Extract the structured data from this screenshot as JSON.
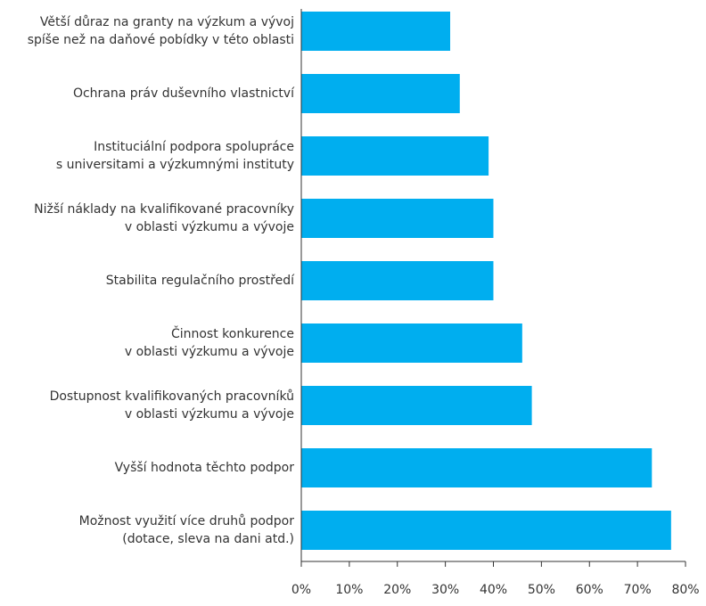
{
  "chart_data": {
    "type": "hbar",
    "categories": [
      [
        "Větší důraz na granty na výzkum a vývoj",
        "spíše než na daňové pobídky v této oblasti"
      ],
      [
        "Ochrana práv duševního vlastnictví"
      ],
      [
        "Instituciální podpora spolupráce",
        "s universitami a výzkumnými instituty"
      ],
      [
        "Nižší náklady na kvalifikované pracovníky",
        "v oblasti výzkumu a vývoje"
      ],
      [
        "Stabilita regulačního prostředí"
      ],
      [
        "Činnost konkurence",
        "v oblasti výzkumu a vývoje"
      ],
      [
        "Dostupnost kvalifikovaných pracovníků",
        "v oblasti výzkumu a vývoje"
      ],
      [
        "Vyšší hodnota těchto podpor"
      ],
      [
        "Možnost využití více druhů podpor",
        "(dotace, sleva na dani atd.)"
      ]
    ],
    "values": [
      31,
      33,
      39,
      40,
      40,
      46,
      48,
      73,
      77
    ],
    "color": "#00aeef",
    "xlim": [
      0,
      80
    ],
    "xticks": [
      {
        "value": 0,
        "label": "0%"
      },
      {
        "value": 10,
        "label": "10%"
      },
      {
        "value": 20,
        "label": "20%"
      },
      {
        "value": 30,
        "label": "30%"
      },
      {
        "value": 40,
        "label": "40%"
      },
      {
        "value": 50,
        "label": "50%"
      },
      {
        "value": 60,
        "label": "60%"
      },
      {
        "value": 70,
        "label": "70%"
      },
      {
        "value": 80,
        "label": "80%"
      }
    ]
  }
}
